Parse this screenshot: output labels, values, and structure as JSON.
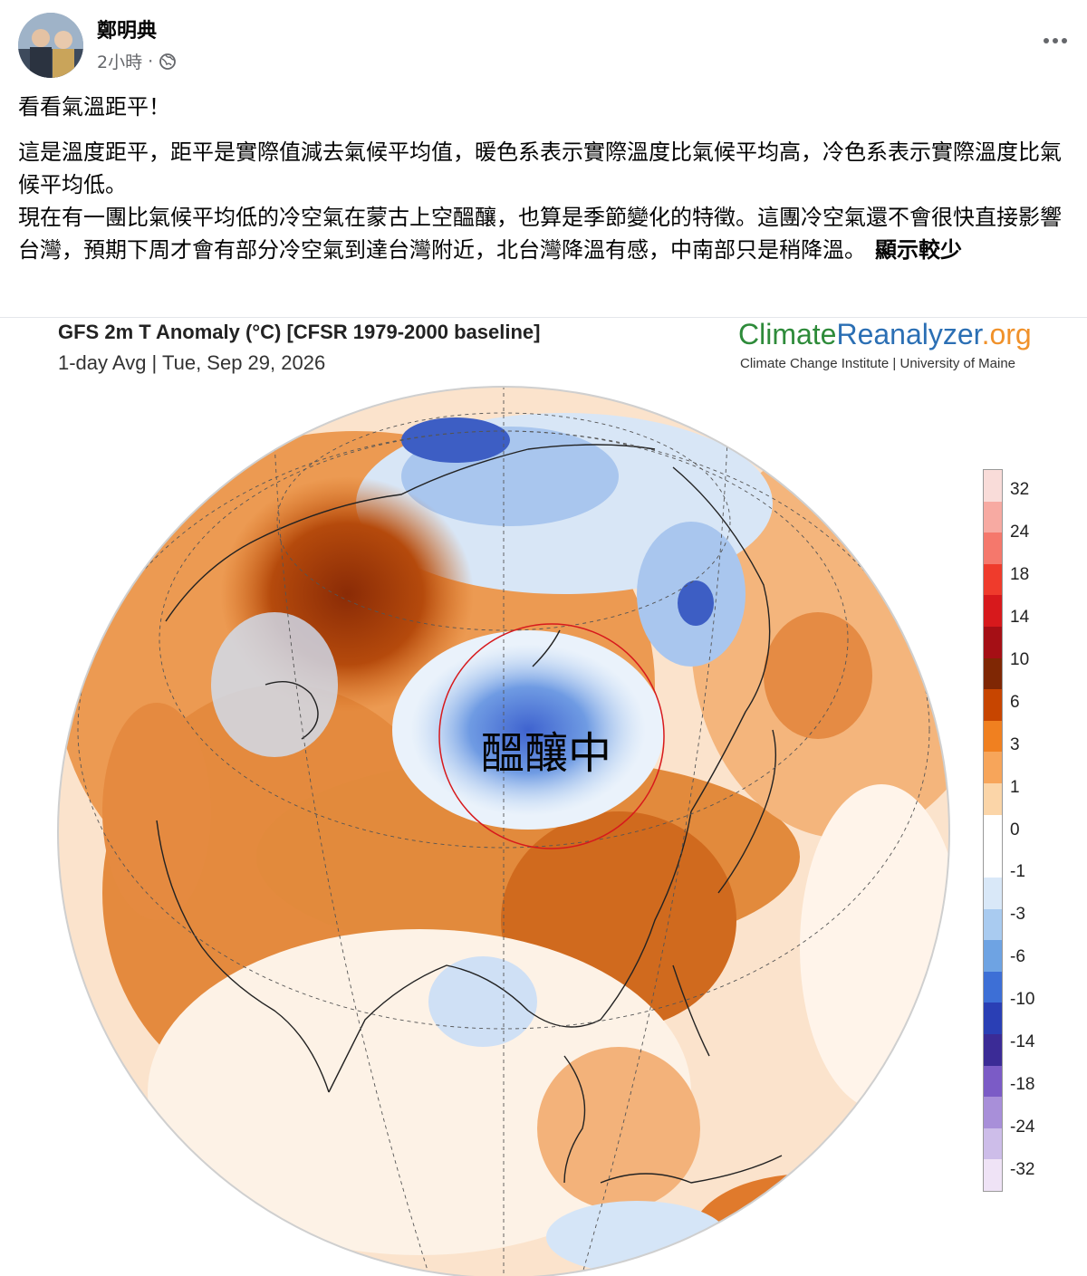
{
  "post": {
    "author": "鄭明典",
    "time": "2小時",
    "separator": "·",
    "audience_icon": "globe-icon",
    "more_icon": "more-dots-icon",
    "line1": "看看氣溫距平！",
    "line2": "這是溫度距平，距平是實際值減去氣候平均值，暖色系表示實際溫度比氣候平均高，冷色系表示實際溫度比氣候平均低。",
    "line3": "現在有一團比氣候平均低的冷空氣在蒙古上空醞釀，也算是季節變化的特徵。這團冷空氣還不會很快直接影響台灣，預期下周才會有部分冷空氣到達台灣附近，北台灣降溫有感，中南部只是稍降溫。",
    "see_more": "顯示較少"
  },
  "figure": {
    "title": "GFS 2m T Anomaly (°C) [CFSR 1979-2000 baseline]",
    "subtitle": "1-day Avg | Tue, Sep 29, 2026",
    "brand_part1": "Climate",
    "brand_part2": "Reanalyzer",
    "brand_part3": ".org",
    "brand_sub": "Climate Change Institute | University of Maine",
    "annotation": "醞釀中",
    "colorbar_labels": [
      "32",
      "24",
      "18",
      "14",
      "10",
      "6",
      "3",
      "1",
      "0",
      "-1",
      "-3",
      "-6",
      "-10",
      "-14",
      "-18",
      "-24",
      "-32"
    ],
    "colorbar_colors": [
      "#f9dcd9",
      "#f7aaa2",
      "#f5786c",
      "#ef3b2c",
      "#d7191c",
      "#a50f15",
      "#7f2704",
      "#c74500",
      "#f08020",
      "#f7a55a",
      "#fbd5a8",
      "#ffffff",
      "#ffffff",
      "#d9e8f8",
      "#a9cbf0",
      "#6ea3e3",
      "#3d6fd6",
      "#2a3fb5",
      "#3b2b96",
      "#7b5bc6",
      "#a88fd9",
      "#cdbde9",
      "#efe3f6"
    ]
  }
}
